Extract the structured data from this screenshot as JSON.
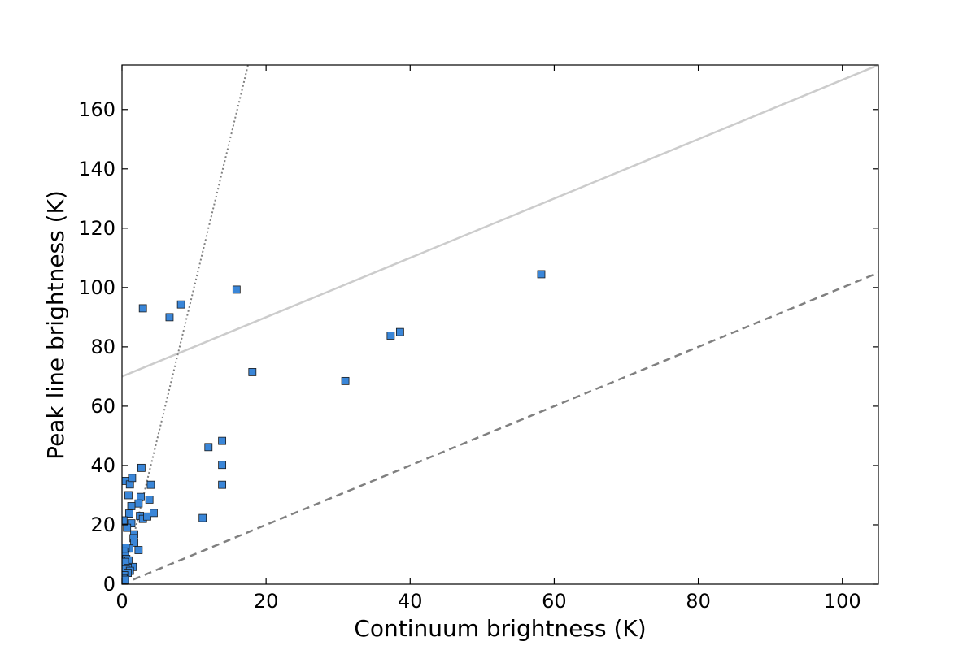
{
  "chart_data": {
    "type": "scatter",
    "title": "",
    "xlabel": "Continuum brightness (K)",
    "ylabel": "Peak line brightness (K)",
    "xlim": [
      0,
      105
    ],
    "ylim": [
      0,
      175
    ],
    "xticks": [
      0,
      20,
      40,
      60,
      80,
      100
    ],
    "yticks": [
      0,
      20,
      40,
      60,
      80,
      100,
      120,
      140,
      160
    ],
    "grid": false,
    "marker": "square",
    "marker_color": "#3a86d8",
    "reference_lines": [
      {
        "style": "solid",
        "color": "#cccccc",
        "slope": 1,
        "intercept": 70
      },
      {
        "style": "dashed",
        "color": "#808080",
        "slope": 1,
        "intercept": 0
      },
      {
        "style": "dotted",
        "color": "#808080",
        "slope": 10,
        "intercept": 0
      }
    ],
    "series": [
      {
        "points": [
          [
            2.9,
            93
          ],
          [
            6.6,
            90
          ],
          [
            8.2,
            94.3
          ],
          [
            15.9,
            99.3
          ],
          [
            58.2,
            104.5
          ],
          [
            18.1,
            71.5
          ],
          [
            31.0,
            68.5
          ],
          [
            37.3,
            83.8
          ],
          [
            38.6,
            85.0
          ],
          [
            12.0,
            46.2
          ],
          [
            13.9,
            48.3
          ],
          [
            13.9,
            40.2
          ],
          [
            13.9,
            33.5
          ],
          [
            11.2,
            22.3
          ],
          [
            0.4,
            34.8
          ],
          [
            1.1,
            33.6
          ],
          [
            1.4,
            35.8
          ],
          [
            2.7,
            39.2
          ],
          [
            4.0,
            33.5
          ],
          [
            0.9,
            30.0
          ],
          [
            2.6,
            29.4
          ],
          [
            3.8,
            28.5
          ],
          [
            2.3,
            27.2
          ],
          [
            1.3,
            26.3
          ],
          [
            1.0,
            23.8
          ],
          [
            2.5,
            23.0
          ],
          [
            2.9,
            22.0
          ],
          [
            3.5,
            22.8
          ],
          [
            4.4,
            24.0
          ],
          [
            0.2,
            21.5
          ],
          [
            1.3,
            20.5
          ],
          [
            0.7,
            19.0
          ],
          [
            1.7,
            16.8
          ],
          [
            1.6,
            15.5
          ],
          [
            1.7,
            14.0
          ],
          [
            2.3,
            11.5
          ],
          [
            1.0,
            12.0
          ],
          [
            0.5,
            12.3
          ],
          [
            0.3,
            11.0
          ],
          [
            0.4,
            9.5
          ],
          [
            0.6,
            8.5
          ],
          [
            0.9,
            8.0
          ],
          [
            0.4,
            7.5
          ],
          [
            1.5,
            5.8
          ],
          [
            0.8,
            5.5
          ],
          [
            0.5,
            5.0
          ],
          [
            1.1,
            4.5
          ],
          [
            0.8,
            3.8
          ],
          [
            0.3,
            3.0
          ],
          [
            0.2,
            2.0
          ],
          [
            0.4,
            1.5
          ]
        ]
      }
    ]
  }
}
